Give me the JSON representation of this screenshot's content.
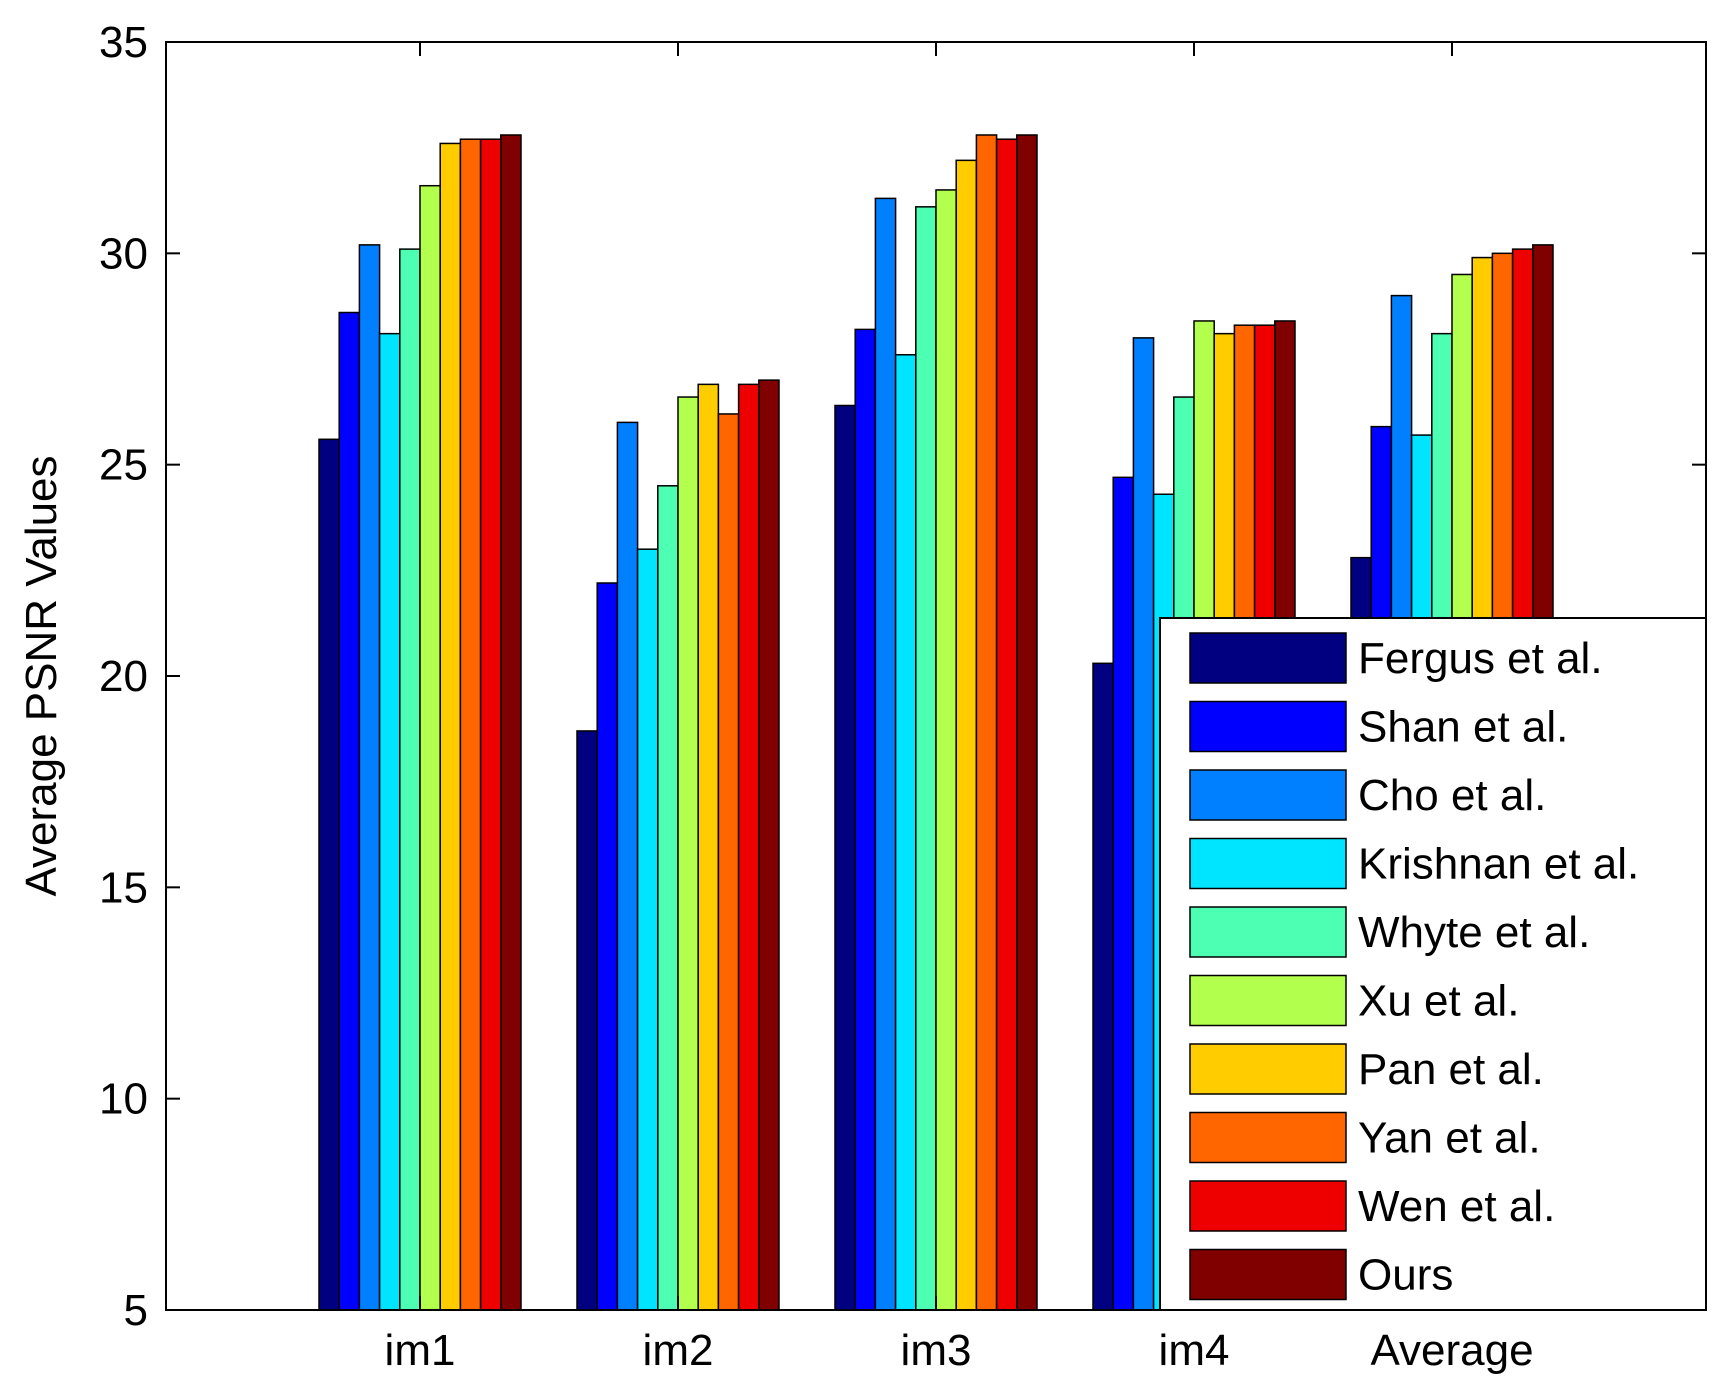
{
  "chart_data": {
    "type": "bar",
    "title": "",
    "xlabel": "",
    "ylabel": "Average PSNR Values",
    "ylim": [
      5,
      35
    ],
    "yticks": [
      5,
      10,
      15,
      20,
      25,
      30,
      35
    ],
    "ytick_labels": [
      "5",
      "10",
      "15",
      "20",
      "25",
      "30",
      "35"
    ],
    "grid": false,
    "legend_position": "bottom-right",
    "categories": [
      "im1",
      "im2",
      "im3",
      "im4",
      "Average"
    ],
    "series": [
      {
        "name": "Fergus et al.",
        "color": "#000080",
        "values": [
          25.6,
          18.7,
          26.4,
          20.3,
          22.8
        ]
      },
      {
        "name": "Shan et al.",
        "color": "#0000ff",
        "values": [
          28.6,
          22.2,
          28.2,
          24.7,
          25.9
        ]
      },
      {
        "name": "Cho et al.",
        "color": "#0080ff",
        "values": [
          30.2,
          26.0,
          31.3,
          28.0,
          29.0
        ]
      },
      {
        "name": "Krishnan et al.",
        "color": "#00e5ff",
        "values": [
          28.1,
          23.0,
          27.6,
          24.3,
          25.7
        ]
      },
      {
        "name": "Whyte et al.",
        "color": "#4dffb2",
        "values": [
          30.1,
          24.5,
          31.1,
          26.6,
          28.1
        ]
      },
      {
        "name": "Xu et al.",
        "color": "#b2ff4d",
        "values": [
          31.6,
          26.6,
          31.5,
          28.4,
          29.5
        ]
      },
      {
        "name": "Pan et al.",
        "color": "#ffcc00",
        "values": [
          32.6,
          26.9,
          32.2,
          28.1,
          29.9
        ]
      },
      {
        "name": "Yan et al.",
        "color": "#ff6600",
        "values": [
          32.7,
          26.2,
          32.8,
          28.3,
          30.0
        ]
      },
      {
        "name": "Wen et al.",
        "color": "#ee0000",
        "values": [
          32.7,
          26.9,
          32.7,
          28.3,
          30.1
        ]
      },
      {
        "name": "Ours",
        "color": "#800000",
        "values": [
          32.8,
          27.0,
          32.8,
          28.4,
          30.2
        ]
      }
    ]
  }
}
